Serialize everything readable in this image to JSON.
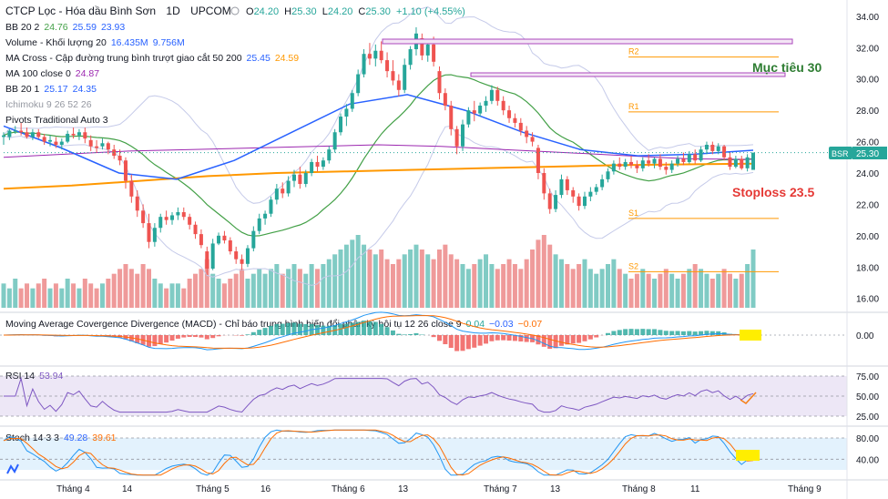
{
  "header": {
    "symbol_title": "CTCP Lọc - Hóa dầu Bình Sơn",
    "interval": "1D",
    "exchange": "UPCOM",
    "ohlc": {
      "o_label": "O",
      "o": "24.20",
      "h_label": "H",
      "h": "25.30",
      "l_label": "L",
      "l": "24.20",
      "c_label": "C",
      "c": "25.30",
      "change": "+1.10 (+4.55%)"
    }
  },
  "legend": [
    {
      "name": "BB 20 2",
      "values": [
        "24.76",
        "25.59",
        "23.93"
      ],
      "color": "#2962ff"
    },
    {
      "name": "Volume - Khối lượng 20",
      "values": [
        "16.435M",
        "9.756M"
      ],
      "color": "#2962ff"
    },
    {
      "name": "MA Cross - Cập đường trung bình trượt giao cắt 50 200",
      "values": [
        "25.45",
        "24.59"
      ],
      "colors": [
        "#2962ff",
        "#ff9800"
      ]
    },
    {
      "name": "MA 100 close 0",
      "values": [
        "24.87"
      ],
      "color": "#9c27b0"
    },
    {
      "name": "BB 20 1",
      "values": [
        "25.17",
        "24.35"
      ],
      "color": "#2962ff"
    },
    {
      "name": "Ichimoku 9 26 52 26",
      "values": [],
      "color": "#b0b0b0"
    },
    {
      "name": "Pivots Traditional Auto 3",
      "values": [],
      "color": "#333333"
    }
  ],
  "annotations": {
    "target": "Mục tiêu 30",
    "stoploss": "Stoploss 23.5",
    "target_color": "#2e7d32",
    "stoploss_color": "#e53935"
  },
  "pivots": [
    {
      "label": "R2",
      "value": 31.4
    },
    {
      "label": "R1",
      "value": 27.9
    },
    {
      "label": "S1",
      "value": 21.1
    },
    {
      "label": "S2",
      "value": 17.7
    }
  ],
  "price_badge": {
    "symbol": "BSR",
    "value": "25.30",
    "color": "#26a69a"
  },
  "macd_panel": {
    "title": "Moving Average Covergence Divergence (MACD) - Chỉ báo trung bình biến đổi phân kỳ hội tụ 12 26 close 9",
    "values": [
      "0.04",
      "−0.03",
      "−0.07"
    ],
    "value_colors": [
      "#26a69a",
      "#2962ff",
      "#ff6d00"
    ],
    "axis": [
      "0.00"
    ]
  },
  "rsi_panel": {
    "title": "RSI 14",
    "value": "53.94",
    "axis": [
      "75.00",
      "50.00",
      "25.00"
    ]
  },
  "stoch_panel": {
    "title": "Stoch 14 3 3",
    "values": [
      "49.28",
      "39.61"
    ],
    "value_colors": [
      "#2962ff",
      "#ff6d00"
    ],
    "axis": [
      "80.00",
      "40.00"
    ]
  },
  "x_axis": [
    "Tháng 4",
    "14",
    "Tháng 5",
    "16",
    "Tháng 6",
    "13",
    "Tháng 7",
    "13",
    "Tháng 8",
    "11",
    "Tháng 9"
  ],
  "chart_data": {
    "type": "candlestick",
    "y_axis_ticks": [
      16,
      18,
      20,
      22,
      24,
      26,
      28,
      30,
      32,
      34
    ],
    "ylim": [
      15.4,
      34.4
    ],
    "grid": false,
    "up_color": "#26a69a",
    "down_color": "#ef5350",
    "candles": [
      [
        26.3,
        26.6,
        25.8,
        26.4
      ],
      [
        26.3,
        26.8,
        26.1,
        26.7
      ],
      [
        26.7,
        27.0,
        26.5,
        26.7
      ],
      [
        26.7,
        27.2,
        26.4,
        26.6
      ],
      [
        26.6,
        26.9,
        26.2,
        26.3
      ],
      [
        26.3,
        26.8,
        26.1,
        26.6
      ],
      [
        26.6,
        26.8,
        26.2,
        26.3
      ],
      [
        26.3,
        26.5,
        25.8,
        26.0
      ],
      [
        26.0,
        26.4,
        25.7,
        26.1
      ],
      [
        26.0,
        26.3,
        25.6,
        25.8
      ],
      [
        25.8,
        26.2,
        25.5,
        26.0
      ],
      [
        26.0,
        26.7,
        25.9,
        26.5
      ],
      [
        26.5,
        26.9,
        26.2,
        26.4
      ],
      [
        26.4,
        26.8,
        26.1,
        26.6
      ],
      [
        26.6,
        26.9,
        25.9,
        26.2
      ],
      [
        26.1,
        26.4,
        25.4,
        25.7
      ],
      [
        25.7,
        26.1,
        25.3,
        25.6
      ],
      [
        25.7,
        26.2,
        25.5,
        25.9
      ],
      [
        25.9,
        26.0,
        25.2,
        25.5
      ],
      [
        25.5,
        25.8,
        24.9,
        25.1
      ],
      [
        25.1,
        25.5,
        24.5,
        24.8
      ],
      [
        24.8,
        25.0,
        23.0,
        23.5
      ],
      [
        23.5,
        23.9,
        22.1,
        22.5
      ],
      [
        22.5,
        22.9,
        21.2,
        21.6
      ],
      [
        21.6,
        22.0,
        20.5,
        20.8
      ],
      [
        20.8,
        21.4,
        19.2,
        19.6
      ],
      [
        19.6,
        20.8,
        19.3,
        20.5
      ],
      [
        20.5,
        21.4,
        20.2,
        21.2
      ],
      [
        21.2,
        21.6,
        20.7,
        21.0
      ],
      [
        21.0,
        21.5,
        20.7,
        21.3
      ],
      [
        21.3,
        21.8,
        21.0,
        21.5
      ],
      [
        21.5,
        21.8,
        21.0,
        21.2
      ],
      [
        21.2,
        21.4,
        20.4,
        20.7
      ],
      [
        20.7,
        20.9,
        19.8,
        20.1
      ],
      [
        20.1,
        20.4,
        19.2,
        19.4
      ],
      [
        19.0,
        19.3,
        17.5,
        17.9
      ],
      [
        17.9,
        19.8,
        17.8,
        19.5
      ],
      [
        19.5,
        20.2,
        19.4,
        20.0
      ],
      [
        20.0,
        20.3,
        19.5,
        19.7
      ],
      [
        19.7,
        19.9,
        18.8,
        19.0
      ],
      [
        19.0,
        19.3,
        18.2,
        18.5
      ],
      [
        18.5,
        18.8,
        17.8,
        18.2
      ],
      [
        18.2,
        19.4,
        18.0,
        19.2
      ],
      [
        19.2,
        20.6,
        19.0,
        20.3
      ],
      [
        20.3,
        21.4,
        20.1,
        21.1
      ],
      [
        21.1,
        21.6,
        20.7,
        21.4
      ],
      [
        21.4,
        22.5,
        21.2,
        22.3
      ],
      [
        22.3,
        23.3,
        22.0,
        23.0
      ],
      [
        23.0,
        23.4,
        22.4,
        22.7
      ],
      [
        22.7,
        23.8,
        22.5,
        23.5
      ],
      [
        23.5,
        24.2,
        23.1,
        23.9
      ],
      [
        23.9,
        24.4,
        23.0,
        23.3
      ],
      [
        23.3,
        24.2,
        23.1,
        24.0
      ],
      [
        24.0,
        24.9,
        23.8,
        24.7
      ],
      [
        24.7,
        25.1,
        24.1,
        24.4
      ],
      [
        24.4,
        25.0,
        24.2,
        24.8
      ],
      [
        24.8,
        25.7,
        24.6,
        25.5
      ],
      [
        25.5,
        26.8,
        25.3,
        26.6
      ],
      [
        26.6,
        27.8,
        26.4,
        27.6
      ],
      [
        27.6,
        28.4,
        27.0,
        28.1
      ],
      [
        28.1,
        29.3,
        27.9,
        29.1
      ],
      [
        29.1,
        30.6,
        28.9,
        30.3
      ],
      [
        30.3,
        31.9,
        30.1,
        31.6
      ],
      [
        31.6,
        32.3,
        30.9,
        31.3
      ],
      [
        31.3,
        32.2,
        30.8,
        31.8
      ],
      [
        31.8,
        32.4,
        31.0,
        31.2
      ],
      [
        31.2,
        31.7,
        30.1,
        30.5
      ],
      [
        30.5,
        31.2,
        29.6,
        29.9
      ],
      [
        29.9,
        30.3,
        28.9,
        29.3
      ],
      [
        29.3,
        31.3,
        29.1,
        30.9
      ],
      [
        30.9,
        32.1,
        30.6,
        31.9
      ],
      [
        31.9,
        33.3,
        31.5,
        32.9
      ],
      [
        32.6,
        32.9,
        31.2,
        31.5
      ],
      [
        31.5,
        32.4,
        31.1,
        32.2
      ],
      [
        32.2,
        32.7,
        30.8,
        31.1
      ],
      [
        30.5,
        30.8,
        28.7,
        29.1
      ],
      [
        29.1,
        29.4,
        28.0,
        28.3
      ],
      [
        28.3,
        28.6,
        26.4,
        26.8
      ],
      [
        26.8,
        27.0,
        25.2,
        25.7
      ],
      [
        25.7,
        27.4,
        25.4,
        27.1
      ],
      [
        27.1,
        28.2,
        26.9,
        28.0
      ],
      [
        28.0,
        28.6,
        27.3,
        27.8
      ],
      [
        27.8,
        28.5,
        27.6,
        28.3
      ],
      [
        28.3,
        28.9,
        27.9,
        28.6
      ],
      [
        28.6,
        29.6,
        28.4,
        29.3
      ],
      [
        29.3,
        29.5,
        28.3,
        28.6
      ],
      [
        28.6,
        28.9,
        27.7,
        28.0
      ],
      [
        28.0,
        28.3,
        27.2,
        27.5
      ],
      [
        27.5,
        27.8,
        26.9,
        27.2
      ],
      [
        27.2,
        27.5,
        26.4,
        26.7
      ],
      [
        26.7,
        27.0,
        25.9,
        26.3
      ],
      [
        26.3,
        26.6,
        25.7,
        26.0
      ],
      [
        25.6,
        25.8,
        23.6,
        24.0
      ],
      [
        24.0,
        24.3,
        22.3,
        22.7
      ],
      [
        22.7,
        23.0,
        21.4,
        21.7
      ],
      [
        21.7,
        22.9,
        21.5,
        22.6
      ],
      [
        22.6,
        23.9,
        22.4,
        23.6
      ],
      [
        23.6,
        23.8,
        22.6,
        22.9
      ],
      [
        22.9,
        23.1,
        22.1,
        22.5
      ],
      [
        22.5,
        22.7,
        21.6,
        21.9
      ],
      [
        21.9,
        22.8,
        21.7,
        22.5
      ],
      [
        22.5,
        23.1,
        22.2,
        22.8
      ],
      [
        22.8,
        23.3,
        22.6,
        23.1
      ],
      [
        23.1,
        23.9,
        22.9,
        23.6
      ],
      [
        23.6,
        24.3,
        23.4,
        24.1
      ],
      [
        24.1,
        24.8,
        23.9,
        24.6
      ],
      [
        24.6,
        25.0,
        24.2,
        24.4
      ],
      [
        24.4,
        24.9,
        24.2,
        24.7
      ],
      [
        24.7,
        25.1,
        24.3,
        24.5
      ],
      [
        24.5,
        24.8,
        24.0,
        24.3
      ],
      [
        24.3,
        25.0,
        24.1,
        24.8
      ],
      [
        24.8,
        25.2,
        24.4,
        24.6
      ],
      [
        24.6,
        25.0,
        24.3,
        24.9
      ],
      [
        24.9,
        25.2,
        24.2,
        24.4
      ],
      [
        24.4,
        24.7,
        23.9,
        24.2
      ],
      [
        24.2,
        24.8,
        24.0,
        24.6
      ],
      [
        24.6,
        25.1,
        24.4,
        24.9
      ],
      [
        24.9,
        25.3,
        24.5,
        24.7
      ],
      [
        24.7,
        25.4,
        24.6,
        25.2
      ],
      [
        25.2,
        25.5,
        24.6,
        24.8
      ],
      [
        24.8,
        25.7,
        24.7,
        25.5
      ],
      [
        25.5,
        26.0,
        25.2,
        25.8
      ],
      [
        25.8,
        26.0,
        25.2,
        25.4
      ],
      [
        25.4,
        25.9,
        25.2,
        25.7
      ],
      [
        25.7,
        25.8,
        24.8,
        25.0
      ],
      [
        25.0,
        25.3,
        24.2,
        24.4
      ],
      [
        24.4,
        25.1,
        24.3,
        24.9
      ],
      [
        24.9,
        25.1,
        24.2,
        24.3
      ],
      [
        24.3,
        25.2,
        24.1,
        25.0
      ],
      [
        24.2,
        25.3,
        24.2,
        25.3
      ]
    ],
    "volume": [
      5,
      4,
      6,
      4,
      5,
      4,
      5,
      6,
      4,
      5,
      4,
      6,
      5,
      4,
      6,
      5,
      4,
      5,
      6,
      7,
      8,
      9,
      8,
      7,
      9,
      8,
      6,
      5,
      4,
      5,
      5,
      4,
      6,
      7,
      8,
      10,
      7,
      6,
      5,
      6,
      7,
      8,
      6,
      7,
      8,
      7,
      8,
      9,
      7,
      8,
      9,
      8,
      7,
      9,
      8,
      9,
      10,
      11,
      12,
      13,
      14,
      15,
      13,
      12,
      11,
      12,
      10,
      9,
      10,
      11,
      12,
      13,
      12,
      11,
      10,
      12,
      13,
      11,
      10,
      9,
      8,
      9,
      10,
      11,
      9,
      8,
      9,
      10,
      9,
      8,
      10,
      12,
      14,
      15,
      13,
      11,
      10,
      9,
      8,
      9,
      10,
      8,
      7,
      8,
      9,
      10,
      8,
      7,
      6,
      7,
      8,
      7,
      6,
      7,
      8,
      7,
      6,
      7,
      8,
      9,
      8,
      7,
      6,
      7,
      8,
      7,
      6,
      7,
      9,
      12
    ],
    "sma50": [
      27.0,
      25.6,
      24.0,
      23.6,
      24.8,
      26.6,
      28.4,
      29.0,
      28.0,
      26.6,
      25.5,
      25.1,
      25.2,
      25.45
    ],
    "ema200": [
      23.0,
      23.2,
      23.5,
      23.8,
      24.0,
      24.1,
      24.2,
      24.3,
      24.4,
      24.5,
      24.55,
      24.59
    ],
    "ma100": [
      25.0,
      25.2,
      25.4,
      25.5,
      25.6,
      25.7,
      25.8,
      25.7,
      25.5,
      25.3,
      25.1,
      24.9,
      24.87
    ],
    "macd": {
      "ylim": [
        -1.6,
        1.2
      ],
      "zero": 0.0
    },
    "rsi": {
      "ylim": [
        15,
        80
      ],
      "last": 53.94
    },
    "stoch": {
      "ylim": [
        0,
        100
      ],
      "k_last": 49.28,
      "d_last": 39.61
    }
  }
}
